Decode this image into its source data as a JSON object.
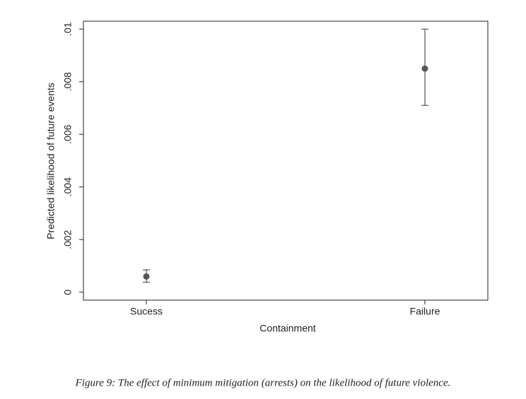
{
  "chart_data": {
    "type": "errorbar",
    "caption": "Figure 9: The effect of minimum mitigation (arrests) on the likelihood of future violence.",
    "xlabel": "Containment",
    "ylabel": "Predicted likelihood of future events",
    "categories": [
      "Sucess",
      "Failure"
    ],
    "values": [
      0.0006,
      0.0085
    ],
    "lower": [
      0.00038,
      0.0071
    ],
    "upper": [
      0.00085,
      0.01
    ],
    "color": "#555555",
    "ylim": [
      -0.0003,
      0.0103
    ],
    "yticks": [
      0,
      {
        "value": 0.002,
        "label": ".002"
      },
      {
        "value": 0.004,
        "label": ".004"
      },
      {
        "value": 0.006,
        "label": ".006"
      },
      {
        "value": 0.008,
        "label": ".008"
      },
      {
        "value": 0.01,
        "label": ".01"
      }
    ],
    "grid": false
  }
}
